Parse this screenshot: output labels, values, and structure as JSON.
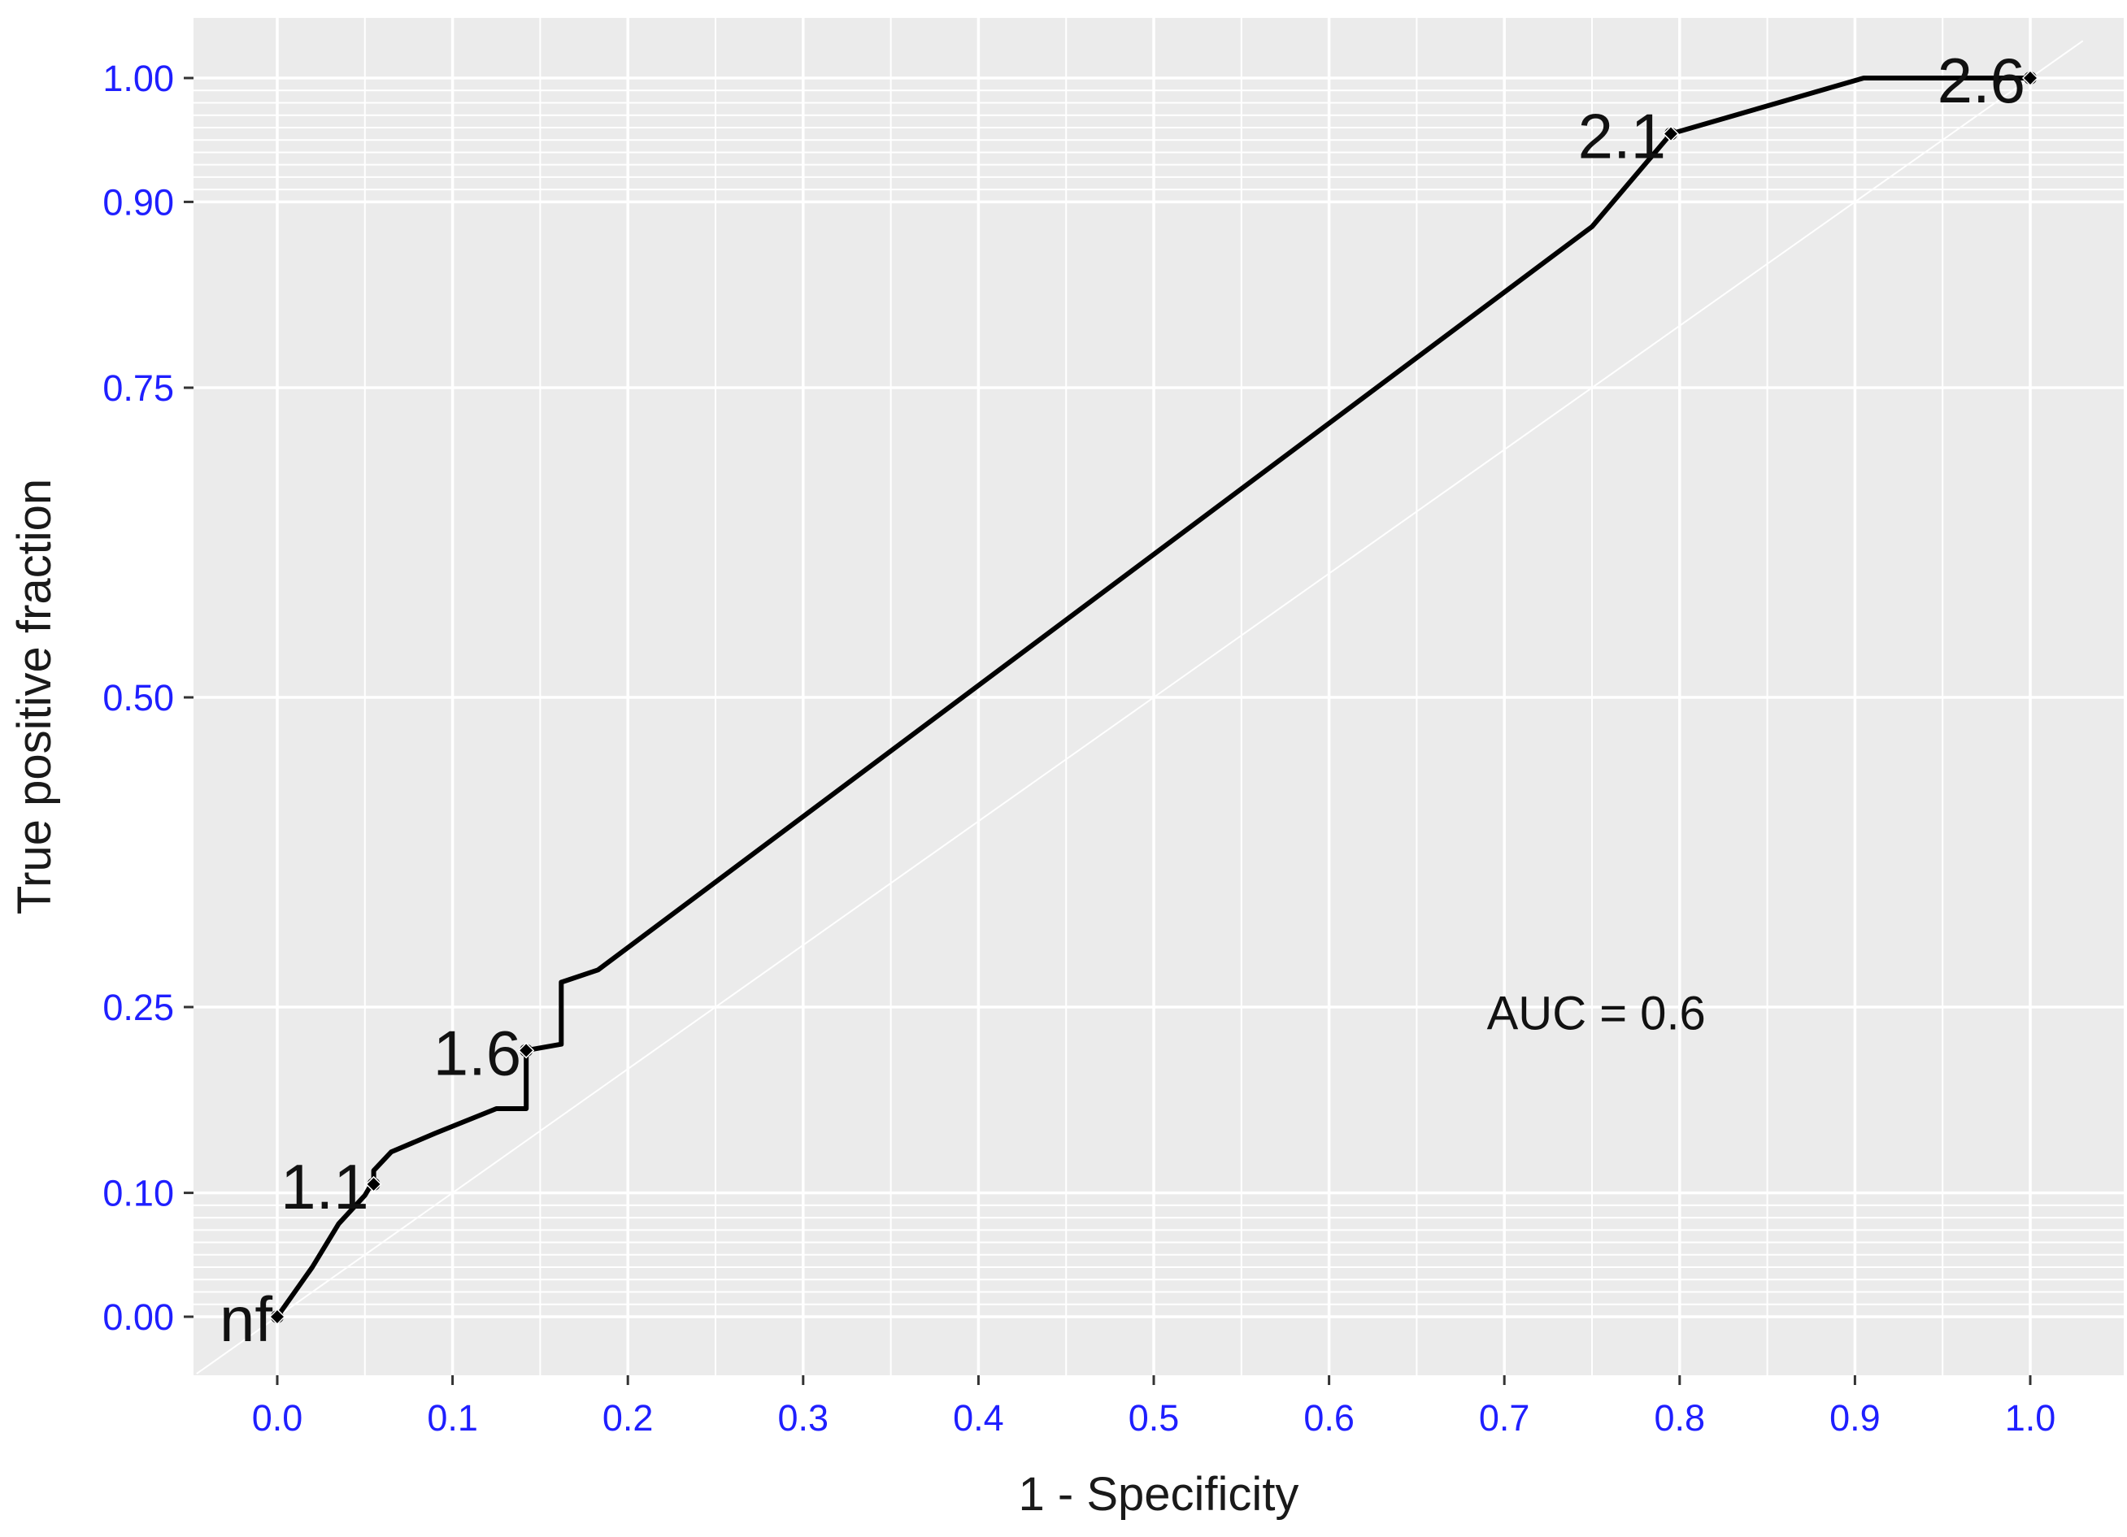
{
  "chart_data": {
    "type": "line",
    "title": "",
    "xlabel": "1 - Specificity",
    "ylabel": "True positive fraction",
    "xlim": [
      -0.046,
      1.03
    ],
    "ylim": [
      -0.046,
      1.03
    ],
    "x_ticks": [
      {
        "value": 0.0,
        "label": "0.0"
      },
      {
        "value": 0.1,
        "label": "0.1"
      },
      {
        "value": 0.2,
        "label": "0.2"
      },
      {
        "value": 0.3,
        "label": "0.3"
      },
      {
        "value": 0.4,
        "label": "0.4"
      },
      {
        "value": 0.5,
        "label": "0.5"
      },
      {
        "value": 0.6,
        "label": "0.6"
      },
      {
        "value": 0.7,
        "label": "0.7"
      },
      {
        "value": 0.8,
        "label": "0.8"
      },
      {
        "value": 0.9,
        "label": "0.9"
      },
      {
        "value": 1.0,
        "label": "1.0"
      }
    ],
    "y_ticks": [
      {
        "value": 0.0,
        "label": "0.00"
      },
      {
        "value": 0.1,
        "label": "0.10"
      },
      {
        "value": 0.25,
        "label": "0.25"
      },
      {
        "value": 0.5,
        "label": "0.50"
      },
      {
        "value": 0.75,
        "label": "0.75"
      },
      {
        "value": 0.9,
        "label": "0.90"
      },
      {
        "value": 1.0,
        "label": "1.00"
      }
    ],
    "y_minor_grid": [
      0.01,
      0.02,
      0.03,
      0.04,
      0.05,
      0.06,
      0.07,
      0.08,
      0.09,
      0.91,
      0.92,
      0.93,
      0.94,
      0.95,
      0.96,
      0.97,
      0.98,
      0.99
    ],
    "x_minor_grid": [
      0.05,
      0.15,
      0.25,
      0.35,
      0.45,
      0.55,
      0.65,
      0.75,
      0.85,
      0.95
    ],
    "grid": true,
    "colors": {
      "panel_background": "#ebebeb",
      "grid_line": "#ffffff",
      "curve": "#000000",
      "tick_label": "#1f1fff"
    },
    "series": [
      {
        "values": [
          [
            0.0,
            0.0
          ],
          [
            0.02,
            0.04
          ],
          [
            0.035,
            0.075
          ],
          [
            0.05,
            0.098
          ],
          [
            0.055,
            0.11
          ],
          [
            0.055,
            0.118
          ],
          [
            0.065,
            0.133
          ],
          [
            0.09,
            0.148
          ],
          [
            0.125,
            0.168
          ],
          [
            0.142,
            0.168
          ],
          [
            0.142,
            0.215
          ],
          [
            0.162,
            0.22
          ],
          [
            0.162,
            0.27
          ],
          [
            0.183,
            0.28
          ],
          [
            0.75,
            0.88
          ],
          [
            0.795,
            0.955
          ],
          [
            0.905,
            1.0
          ],
          [
            1.0,
            1.0
          ]
        ]
      }
    ],
    "reference_line": {
      "from": [
        -0.046,
        -0.046
      ],
      "to": [
        1.03,
        1.03
      ]
    },
    "points": [
      {
        "label": "nf",
        "x": 0.0,
        "y": 0.0
      },
      {
        "label": "1.1",
        "x": 0.055,
        "y": 0.107
      },
      {
        "label": "1.6",
        "x": 0.142,
        "y": 0.215
      },
      {
        "label": "2.1",
        "x": 0.795,
        "y": 0.955
      },
      {
        "label": "2.6",
        "x": 1.0,
        "y": 1.0
      }
    ],
    "annotations": [
      {
        "text": "AUC = 0.6",
        "x": 0.69,
        "y": 0.245
      }
    ]
  }
}
